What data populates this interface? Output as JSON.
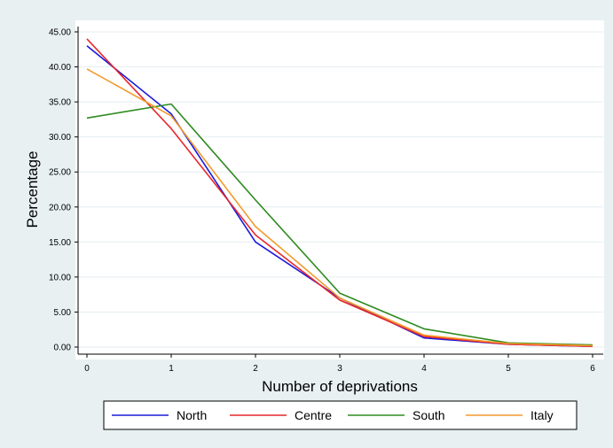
{
  "chart_data": {
    "type": "line",
    "title": "",
    "xlabel": "Number of deprivations",
    "ylabel": "Percentage",
    "x": [
      0,
      1,
      2,
      3,
      4,
      5,
      6
    ],
    "xlim": [
      0,
      6
    ],
    "ylim": [
      0,
      45
    ],
    "x_ticks": [
      "0",
      "1",
      "2",
      "3",
      "4",
      "5",
      "6"
    ],
    "y_ticks": [
      0,
      5,
      10,
      15,
      20,
      25,
      30,
      35,
      40,
      45
    ],
    "y_tick_labels": [
      "0.00",
      "5.00",
      "10.00",
      "15.00",
      "20.00",
      "25.00",
      "30.00",
      "35.00",
      "40.00",
      "45.00"
    ],
    "grid": true,
    "legend_position": "bottom",
    "series": [
      {
        "name": "North",
        "color": "#1a1adb",
        "values": [
          43.0,
          33.3,
          15.0,
          7.0,
          1.3,
          0.4,
          0.1
        ]
      },
      {
        "name": "Centre",
        "color": "#e8262a",
        "values": [
          44.0,
          31.2,
          16.0,
          6.7,
          1.5,
          0.4,
          0.1
        ]
      },
      {
        "name": "South",
        "color": "#2e8b20",
        "values": [
          32.7,
          34.7,
          21.0,
          7.7,
          2.6,
          0.6,
          0.3
        ]
      },
      {
        "name": "Italy",
        "color": "#f39a2c",
        "values": [
          39.7,
          33.0,
          17.2,
          7.0,
          1.7,
          0.5,
          0.2
        ]
      }
    ]
  }
}
